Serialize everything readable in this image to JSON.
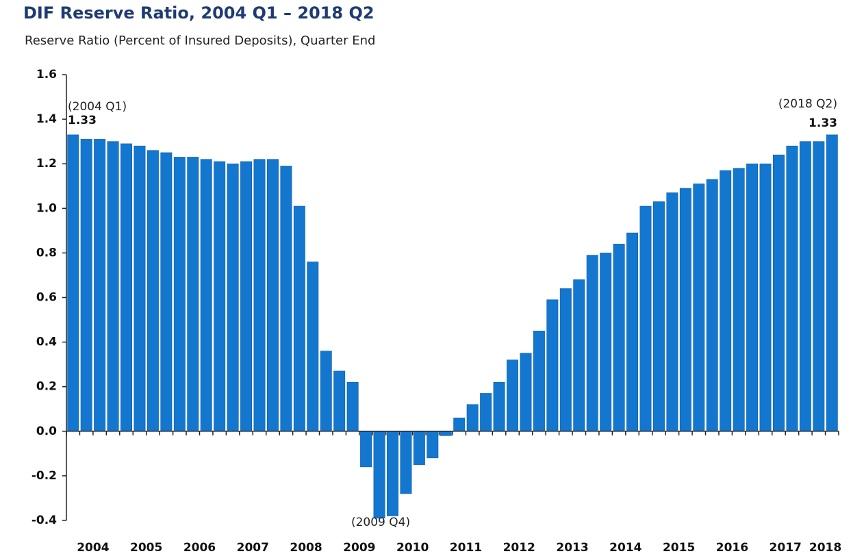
{
  "chart_data": {
    "type": "bar",
    "title": "DIF Reserve Ratio, 2004 Q1 – 2018 Q2",
    "subtitle": "Reserve Ratio (Percent of Insured Deposits), Quarter End",
    "annotations": [
      "(2004 Q1)",
      "(2009 Q4)",
      "(2018 Q2)"
    ],
    "categories": [
      "2004",
      null,
      null,
      null,
      "2005",
      null,
      null,
      null,
      "2006",
      null,
      null,
      null,
      "2007",
      null,
      null,
      null,
      "2008",
      null,
      null,
      null,
      "2009",
      null,
      null,
      null,
      "2010",
      null,
      null,
      null,
      "2011",
      null,
      null,
      null,
      "2012",
      null,
      null,
      null,
      "2013",
      null,
      null,
      null,
      "2014",
      null,
      null,
      null,
      "2015",
      null,
      null,
      null,
      "2016",
      null,
      null,
      null,
      "2017",
      null,
      null,
      null,
      "2018",
      null
    ],
    "values": [
      1.33,
      1.31,
      1.31,
      1.3,
      1.29,
      1.28,
      1.26,
      1.25,
      1.23,
      1.23,
      1.22,
      1.21,
      1.2,
      1.21,
      1.22,
      1.22,
      1.19,
      1.01,
      0.76,
      0.36,
      0.27,
      0.22,
      -0.16,
      -0.39,
      -0.38,
      -0.28,
      -0.15,
      -0.12,
      -0.02,
      0.06,
      0.12,
      0.17,
      0.22,
      0.32,
      0.35,
      0.45,
      0.59,
      0.64,
      0.68,
      0.79,
      0.8,
      0.84,
      0.89,
      1.01,
      1.03,
      1.07,
      1.09,
      1.11,
      1.13,
      1.17,
      1.18,
      1.2,
      1.2,
      1.24,
      1.28,
      1.3,
      1.3,
      1.33
    ],
    "color": "#1477cf",
    "ylim": [
      -0.4,
      1.6
    ],
    "yticks": [
      -0.4,
      -0.2,
      {
        "value": 0,
        "label": "0.0"
      },
      0.2,
      0.4,
      0.6,
      0.8,
      {
        "value": 1,
        "label": "1.0"
      },
      1.2,
      1.4,
      1.6
    ],
    "grid": false
  }
}
